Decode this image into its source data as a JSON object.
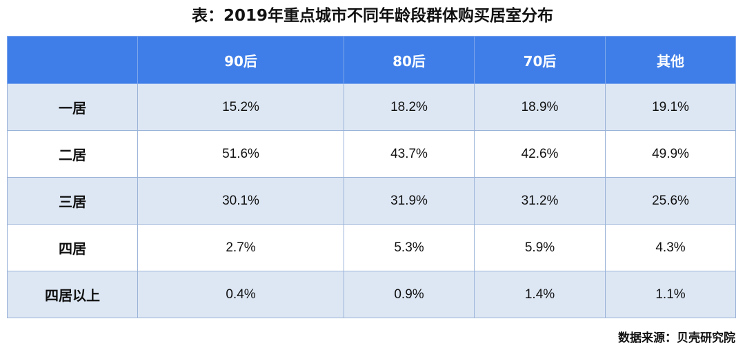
{
  "chart_data": {
    "type": "table",
    "title": "表：2019年重点城市不同年龄段群体购买居室分布",
    "columns": [
      "",
      "90后",
      "80后",
      "70后",
      "其他"
    ],
    "rows": [
      {
        "label": "一居",
        "values": [
          "15.2%",
          "18.2%",
          "18.9%",
          "19.1%"
        ]
      },
      {
        "label": "二居",
        "values": [
          "51.6%",
          "43.7%",
          "42.6%",
          "49.9%"
        ]
      },
      {
        "label": "三居",
        "values": [
          "30.1%",
          "31.9%",
          "31.2%",
          "25.6%"
        ]
      },
      {
        "label": "四居",
        "values": [
          "2.7%",
          "5.3%",
          "5.9%",
          "4.3%"
        ]
      },
      {
        "label": "四居以上",
        "values": [
          "0.4%",
          "0.9%",
          "1.4%",
          "1.1%"
        ]
      }
    ],
    "source": "数据来源：贝壳研究院"
  },
  "colors": {
    "header_bg": "#3f7ee8",
    "shaded_row_bg": "#dde7f4",
    "plain_row_bg": "#ffffff",
    "border": "#9ab3d8"
  }
}
